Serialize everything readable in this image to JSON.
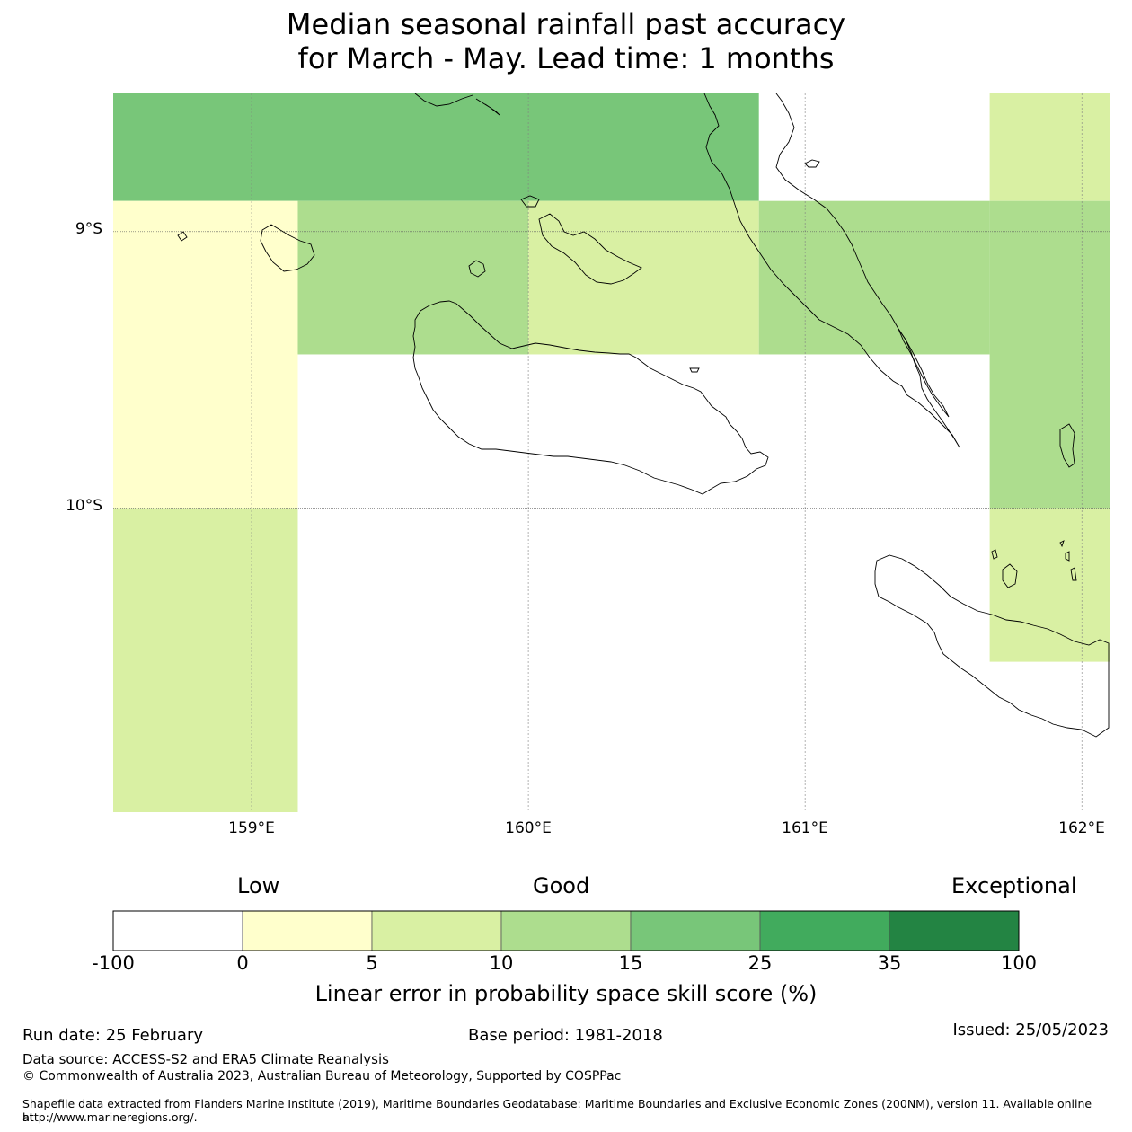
{
  "title_line1": "Median seasonal rainfall past accuracy",
  "title_line2": "for March - May. Lead time: 1 months",
  "chart_data": {
    "type": "heatmap",
    "title": "Median seasonal rainfall past accuracy for March - May. Lead time: 1 months",
    "x_range": [
      158.5,
      162.1
    ],
    "y_range": [
      -11.1,
      -8.5
    ],
    "latitude_ticks": [
      {
        "value": -9,
        "label": "9°S"
      },
      {
        "value": -10,
        "label": "10°S"
      }
    ],
    "longitude_ticks": [
      {
        "value": 159,
        "label": "159°E"
      },
      {
        "value": 160,
        "label": "160°E"
      },
      {
        "value": 161,
        "label": "161°E"
      },
      {
        "value": 162,
        "label": "162°E"
      }
    ],
    "cells": [
      {
        "lon0": 158.5,
        "lon1": 160.833,
        "lat0": -8.5,
        "lat1": -8.889,
        "value": 20
      },
      {
        "lon0": 158.5,
        "lon1": 159.167,
        "lat0": -8.889,
        "lat1": -10.0,
        "value": 2.5
      },
      {
        "lon0": 159.167,
        "lon1": 160.0,
        "lat0": -8.889,
        "lat1": -9.444,
        "value": 12.5
      },
      {
        "lon0": 160.0,
        "lon1": 160.833,
        "lat0": -8.889,
        "lat1": -9.444,
        "value": 7.5
      },
      {
        "lon0": 160.833,
        "lon1": 161.667,
        "lat0": -8.889,
        "lat1": -9.444,
        "value": 12.5
      },
      {
        "lon0": 161.667,
        "lon1": 162.1,
        "lat0": -8.5,
        "lat1": -8.889,
        "value": 7.5
      },
      {
        "lon0": 161.667,
        "lon1": 162.1,
        "lat0": -8.889,
        "lat1": -10.0,
        "value": 12.5
      },
      {
        "lon0": 161.667,
        "lon1": 162.1,
        "lat0": -10.0,
        "lat1": -10.556,
        "value": 7.5
      },
      {
        "lon0": 158.5,
        "lon1": 159.167,
        "lat0": -10.0,
        "lat1": -11.1,
        "value": 7.5
      }
    ],
    "colorbar": {
      "boundaries": [
        "-100",
        "0",
        "5",
        "10",
        "15",
        "25",
        "35",
        "100"
      ],
      "colors": [
        "#ffffff",
        "#ffffcc",
        "#d9f0a3",
        "#addd8e",
        "#78c679",
        "#41ab5d",
        "#238443"
      ],
      "categories": [
        "Low",
        "Good",
        "Exceptional"
      ],
      "label": "Linear error in probability space skill score (%)"
    }
  },
  "footer": {
    "run_date": "Run date: 25 February",
    "base_period": "Base period: 1981-2018",
    "issued": "Issued: 25/05/2023",
    "data_source": "Data source: ACCESS-S2 and ERA5 Climate Reanalysis",
    "copyright": "© Commonwealth of Australia 2023, Australian Bureau of Meteorology, Supported by COSPPac",
    "shapefile_line1": "Shapefile data extracted from Flanders Marine Institute (2019), Maritime Boundaries Geodatabase: Maritime Boundaries and Exclusive Economic Zones (200NM), version 11. Available online at",
    "shapefile_line2": "http://www.marineregions.org/."
  }
}
